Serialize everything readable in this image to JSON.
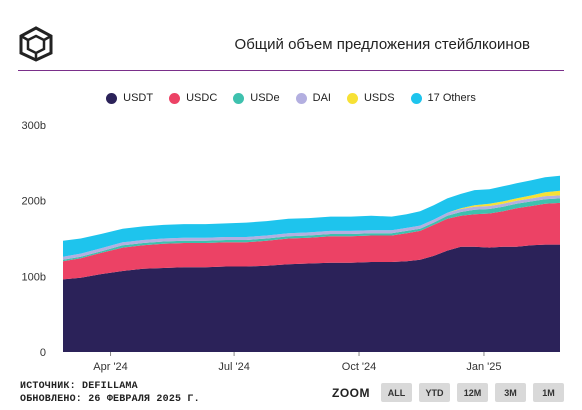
{
  "header": {
    "title": "Общий объем предложения стейблкоинов"
  },
  "footer": {
    "source": "ИСТОЧНИК: DEFILLAMA",
    "updated": "ОБНОВЛЕНО: 26 ФЕВРАЛЯ 2025 Г."
  },
  "zoom": {
    "label": "ZOOM",
    "buttons": [
      "ALL",
      "YTD",
      "12M",
      "3M",
      "1M"
    ]
  },
  "chart_data": {
    "type": "area",
    "stacked": true,
    "x_dates": [
      "2024-02-26",
      "2024-03-10",
      "2024-03-25",
      "2024-04-10",
      "2024-04-25",
      "2024-05-10",
      "2024-05-25",
      "2024-06-10",
      "2024-06-25",
      "2024-07-10",
      "2024-07-25",
      "2024-08-10",
      "2024-08-25",
      "2024-09-10",
      "2024-09-25",
      "2024-10-10",
      "2024-10-25",
      "2024-11-05",
      "2024-11-15",
      "2024-11-25",
      "2024-12-05",
      "2024-12-15",
      "2024-12-25",
      "2025-01-05",
      "2025-01-15",
      "2025-01-25",
      "2025-02-05",
      "2025-02-15",
      "2025-02-26"
    ],
    "series": [
      {
        "name": "USDT",
        "color": "#2b2259",
        "values": [
          96,
          98,
          103,
          107,
          110,
          111,
          112,
          112,
          113,
          113,
          114,
          116,
          117,
          118,
          118,
          119,
          119,
          120,
          122,
          127,
          134,
          139,
          139,
          138,
          139,
          139,
          141,
          142,
          142
        ]
      },
      {
        "name": "USDC",
        "color": "#ec4265",
        "values": [
          24,
          26,
          28,
          31,
          31,
          32,
          32,
          32,
          32,
          32,
          33,
          34,
          34,
          35,
          35,
          35,
          35,
          37,
          38,
          41,
          42,
          41,
          43,
          45,
          47,
          51,
          52,
          54,
          55
        ]
      },
      {
        "name": "USDe",
        "color": "#3ec1ae",
        "values": [
          2,
          2,
          2,
          3,
          3,
          3,
          3,
          3,
          3,
          3,
          3,
          3,
          3,
          3,
          3,
          3,
          3,
          3,
          3,
          3,
          4,
          5,
          6,
          6,
          6,
          6,
          6,
          6,
          6
        ]
      },
      {
        "name": "DAI",
        "color": "#b3afe0",
        "values": [
          4,
          4,
          4,
          4,
          4,
          4,
          4,
          4,
          4,
          4,
          4,
          4,
          4,
          4,
          4,
          4,
          4,
          4,
          4,
          4,
          4,
          4,
          4,
          4,
          4,
          4,
          4,
          4,
          4
        ]
      },
      {
        "name": "USDS",
        "color": "#f7e135",
        "values": [
          0,
          0,
          0,
          0,
          0,
          0,
          0,
          0,
          0,
          0,
          0,
          0,
          0,
          0,
          0,
          0,
          0,
          0,
          0,
          0,
          0,
          1,
          2,
          3,
          3,
          3,
          4,
          5,
          6
        ]
      },
      {
        "name": "17 Others",
        "color": "#1ec4ed",
        "values": [
          21,
          20,
          19,
          18,
          18,
          18,
          18,
          18,
          18,
          19,
          19,
          19,
          19,
          19,
          19,
          19,
          18,
          18,
          19,
          19,
          19,
          19,
          20,
          19,
          20,
          20,
          20,
          20,
          20
        ]
      }
    ],
    "x_ticks": [
      "Apr '24",
      "Jul '24",
      "Oct '24",
      "Jan '25"
    ],
    "x_tick_dates": [
      "2024-04-01",
      "2024-07-01",
      "2024-10-01",
      "2025-01-01"
    ],
    "y_ticks": [
      "0",
      "100b",
      "200b",
      "300b"
    ],
    "y_tick_values": [
      0,
      100,
      200,
      300
    ],
    "ylim": [
      0,
      300
    ],
    "xlim": [
      "2024-02-26",
      "2025-02-26"
    ],
    "grid": false,
    "legend_position": "top"
  }
}
